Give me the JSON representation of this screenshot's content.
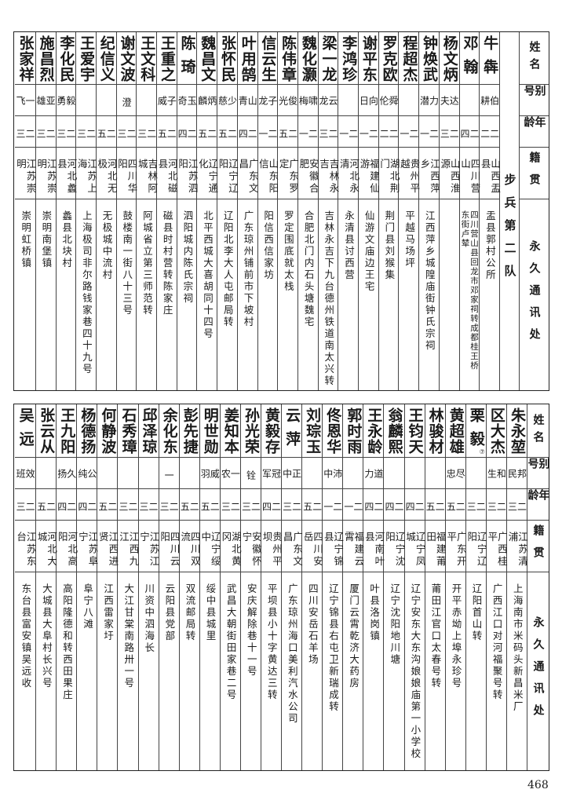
{
  "headers": {
    "name": "姓名",
    "alias": "别号",
    "age": "年龄",
    "origin": "籍贯",
    "address": "永久通讯处"
  },
  "top": {
    "unit": "步兵第二队",
    "rows": [
      {
        "name": "牛犇",
        "alias": "伯耕",
        "age": "二二",
        "origin": "山西盂县",
        "address": "盂县郭村公所"
      },
      {
        "name": "邓翰",
        "alias": "",
        "age": "二四",
        "origin": "四川营山",
        "address": "四川营山县回龙市邓家祠转成都桂王桥",
        "address2": "东街卢辇"
      },
      {
        "name": "杨文炳",
        "alias": "达夫",
        "age": "二三",
        "origin": "山西淮源",
        "address": ""
      },
      {
        "name": "钟焕武",
        "alias": "力潜",
        "age": "二一",
        "origin": "江西萍乡",
        "address": "江西萍乡城隍庙街钟氏宗祠"
      },
      {
        "name": "程超杰",
        "alias": "",
        "age": "二一",
        "origin": "贵州平越",
        "address": "平越马场坪"
      },
      {
        "name": "罗克欧",
        "alias": "舜伦",
        "age": "二二",
        "origin": "湖北荆门",
        "address": "荆门县刘猴集"
      },
      {
        "name": "谢平东",
        "alias": "向日",
        "age": "二一",
        "origin": "福建仙游",
        "address": "仙游文庙边王宅"
      },
      {
        "name": "李鸿珍",
        "alias": "",
        "age": "二一",
        "origin": "河北永清",
        "address": "永清县讨西营"
      },
      {
        "name": "梁一龙",
        "alias": "云龙",
        "age": "二三",
        "origin": "吉林永吉",
        "address": "吉林永吉下九台德州铁道南太兴转"
      },
      {
        "name": "魏化灏",
        "alias": "啸梅",
        "age": "二一",
        "origin": "安徽合肥",
        "address": "合肥北门内石头塘魏宅"
      },
      {
        "name": "陈伟章",
        "alias": "俊光",
        "age": "二五",
        "origin": "广东罗定",
        "address": "罗定围底就太栈"
      },
      {
        "name": "信云生",
        "alias": "子龙",
        "age": "二一",
        "origin": "山东阳信",
        "address": "阳信西信家坊"
      },
      {
        "name": "叶用鹄",
        "alias": "山青",
        "age": "二四",
        "origin": "广东文昌",
        "address": "广东琼州铺前市下坡村"
      },
      {
        "name": "张怀民",
        "alias": "少慈",
        "age": "二五",
        "origin": "辽宁辽阳",
        "address": "辽阳北李大人屯邮局转"
      },
      {
        "name": "魏昌文",
        "alias": "炳麟",
        "age": "二五",
        "origin": "辽宁通化",
        "address": "北平西城大喜胡同十四号"
      },
      {
        "name": "陈琦",
        "alias": "玉奇",
        "age": "二四",
        "origin": "江苏泗阳",
        "address": "泗阳城内陈氏宗祠"
      },
      {
        "name": "王重之",
        "alias": "子威",
        "age": "二五",
        "origin": "河北磁县",
        "address": "磁县时村营转陈家庄"
      },
      {
        "name": "王文科",
        "alias": "",
        "age": "二三",
        "origin": "吉林阿城",
        "address": "阿城省立第三师范转"
      },
      {
        "name": "谢文波",
        "alias": "澄",
        "age": "二三",
        "origin": "四川华阳",
        "address": "鼓楼南一街八十三号"
      },
      {
        "name": "纪信义",
        "alias": "",
        "age": "二五",
        "origin": "河北无极",
        "address": "无极城中流村"
      },
      {
        "name": "王爱宇",
        "alias": "",
        "age": "二三",
        "origin": "江苏上海",
        "address": "上海极司非尔路钱家巷四十九号"
      },
      {
        "name": "李化民",
        "alias": "毅勇",
        "age": "二三",
        "origin": "河北蠡县",
        "address": "蠡县北块村"
      },
      {
        "name": "施昌烈",
        "alias": "亚雄",
        "age": "二三",
        "origin": "江苏崇明",
        "address": "崇明南堡镇"
      },
      {
        "name": "张家祥",
        "alias": "一飞",
        "age": "二三",
        "origin": "江苏崇明",
        "address": "崇明虹桥镇"
      }
    ]
  },
  "bottom": {
    "rows": [
      {
        "name": "朱永堃",
        "alias": "邦民",
        "age": "二三",
        "origin": "江苏清浦",
        "address": "上海南市米码头新昌米厂"
      },
      {
        "name": "区大杰",
        "alias": "和生",
        "age": "二三",
        "origin": "广西桂平",
        "address": "广西江口对河福聚号转"
      },
      {
        "name": "栗毅",
        "note": "⑦",
        "alias": "",
        "age": "二三",
        "origin": "辽宁辽阳",
        "address": "辽阳首山转"
      },
      {
        "name": "黄超雄",
        "alias": "尽忠",
        "age": "二五",
        "origin": "广东开平",
        "address": "开平赤坳上埠永珍号"
      },
      {
        "name": "林骏材",
        "alias": "",
        "age": "二五",
        "origin": "福建莆田",
        "address": "莆田江官口太春号转"
      },
      {
        "name": "王钧天",
        "alias": "",
        "age": "二四",
        "origin": "辽宁凤城",
        "address": "辽宁安东大东沟娘娘庙第一小学校"
      },
      {
        "name": "翁麟熙",
        "alias": "",
        "age": "二四",
        "origin": "辽宁沈阳",
        "address": "辽宁沈阳地川塘"
      },
      {
        "name": "王永龄",
        "alias": "道力",
        "age": "二四",
        "origin": "河南叶县",
        "address": "叶县洛岗镇"
      },
      {
        "name": "郭时雨",
        "alias": "",
        "age": "二一",
        "origin": "福建云霄",
        "address": "厦门云霄乾济大药房"
      },
      {
        "name": "佟恩华",
        "alias": "沛中",
        "age": "二一",
        "origin": "辽宁锦县",
        "address": "辽宁锦县右屯卫新瑞成转"
      },
      {
        "name": "刘琮玉",
        "alias": "",
        "age": "二五",
        "origin": "四川安岳",
        "address": "四川安岳石羊场"
      },
      {
        "name": "云萍",
        "alias": "正中",
        "age": "二三",
        "origin": "广东文昌",
        "address": "广东琼州海口美利汽水公司"
      },
      {
        "name": "黄毅存",
        "alias": "冠军",
        "age": "二四",
        "origin": "贵州平坝",
        "address": "平坝县小十字黄达三转"
      },
      {
        "name": "孙光荣",
        "alias": "铨",
        "age": "二三",
        "origin": "安徽怀宁",
        "address": "安庆解除巷十一号"
      },
      {
        "name": "姜知本",
        "alias": "一农",
        "age": "二三",
        "origin": "湖北黄冈",
        "address": "武昌大朝街田家巷二号"
      },
      {
        "name": "明世勋",
        "alias": "威羽",
        "age": "二五",
        "origin": "辽宁绥中",
        "address": "绥中县城里"
      },
      {
        "name": "彭先捷",
        "alias": "",
        "age": "二五",
        "origin": "四川双流",
        "address": "双流邮局转"
      },
      {
        "name": "余化东",
        "alias": "一",
        "age": "二三",
        "origin": "四川云阳",
        "address": "云阳县党部"
      },
      {
        "name": "邱泽琼",
        "alias": "",
        "age": "二三",
        "origin": "江苏江宁",
        "address": "川资中泗海长"
      },
      {
        "name": "石秀璋",
        "alias": "",
        "age": "二三",
        "origin": "江西九江",
        "address": "大江甘棠南路卅一号"
      },
      {
        "name": "何静波",
        "alias": "",
        "age": "二五",
        "origin": "江西进贤",
        "address": "江西雷家圩"
      },
      {
        "name": "杨德扬",
        "alias": "公纯",
        "age": "二四",
        "origin": "江苏阜宁",
        "address": "阜宁八滩"
      },
      {
        "name": "王九阳",
        "alias": "久扬",
        "age": "二四",
        "origin": "河北高阳",
        "address": "高阳隆德和转西田果庄"
      },
      {
        "name": "张云从",
        "alias": "",
        "age": "二五",
        "origin": "河北大城",
        "address": "大城县大阜村长兴号"
      },
      {
        "name": "吴远",
        "alias": "效班",
        "age": "二三",
        "origin": "江苏东台",
        "address": "东台县富安镇吴远收"
      }
    ]
  },
  "page_number": "468"
}
